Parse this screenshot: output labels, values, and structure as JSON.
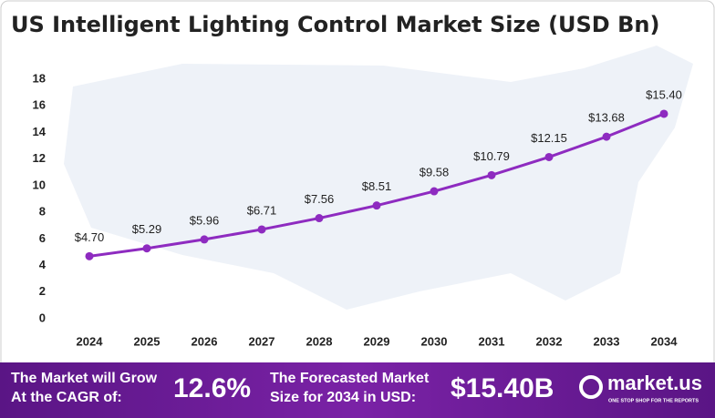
{
  "chart_data": {
    "type": "line",
    "title": "US Intelligent Lighting Control Market Size (USD Bn)",
    "categories": [
      "2024",
      "2025",
      "2026",
      "2027",
      "2028",
      "2029",
      "2030",
      "2031",
      "2032",
      "2033",
      "2034"
    ],
    "values": [
      4.7,
      5.29,
      5.96,
      6.71,
      7.56,
      8.51,
      9.58,
      10.79,
      12.15,
      13.68,
      15.4
    ],
    "value_labels": [
      "$4.70",
      "$5.29",
      "$5.96",
      "$6.71",
      "$7.56",
      "$8.51",
      "$9.58",
      "$10.79",
      "$12.15",
      "$13.68",
      "$15.40"
    ],
    "color": "#8e2bc0",
    "ylim": [
      0,
      18
    ],
    "yticks": [
      0,
      2,
      4,
      6,
      8,
      10,
      12,
      14,
      16,
      18
    ],
    "grid": false
  },
  "banner": {
    "cagr_text": [
      "The Market will Grow",
      "At the CAGR of:"
    ],
    "cagr": "12.6%",
    "forecast_text": [
      "The Forecasted Market",
      "Size for 2034 in USD:"
    ],
    "forecast": "$15.40B",
    "brand": "market.us",
    "tagline": "ONE STOP SHOP FOR THE REPORTS"
  }
}
